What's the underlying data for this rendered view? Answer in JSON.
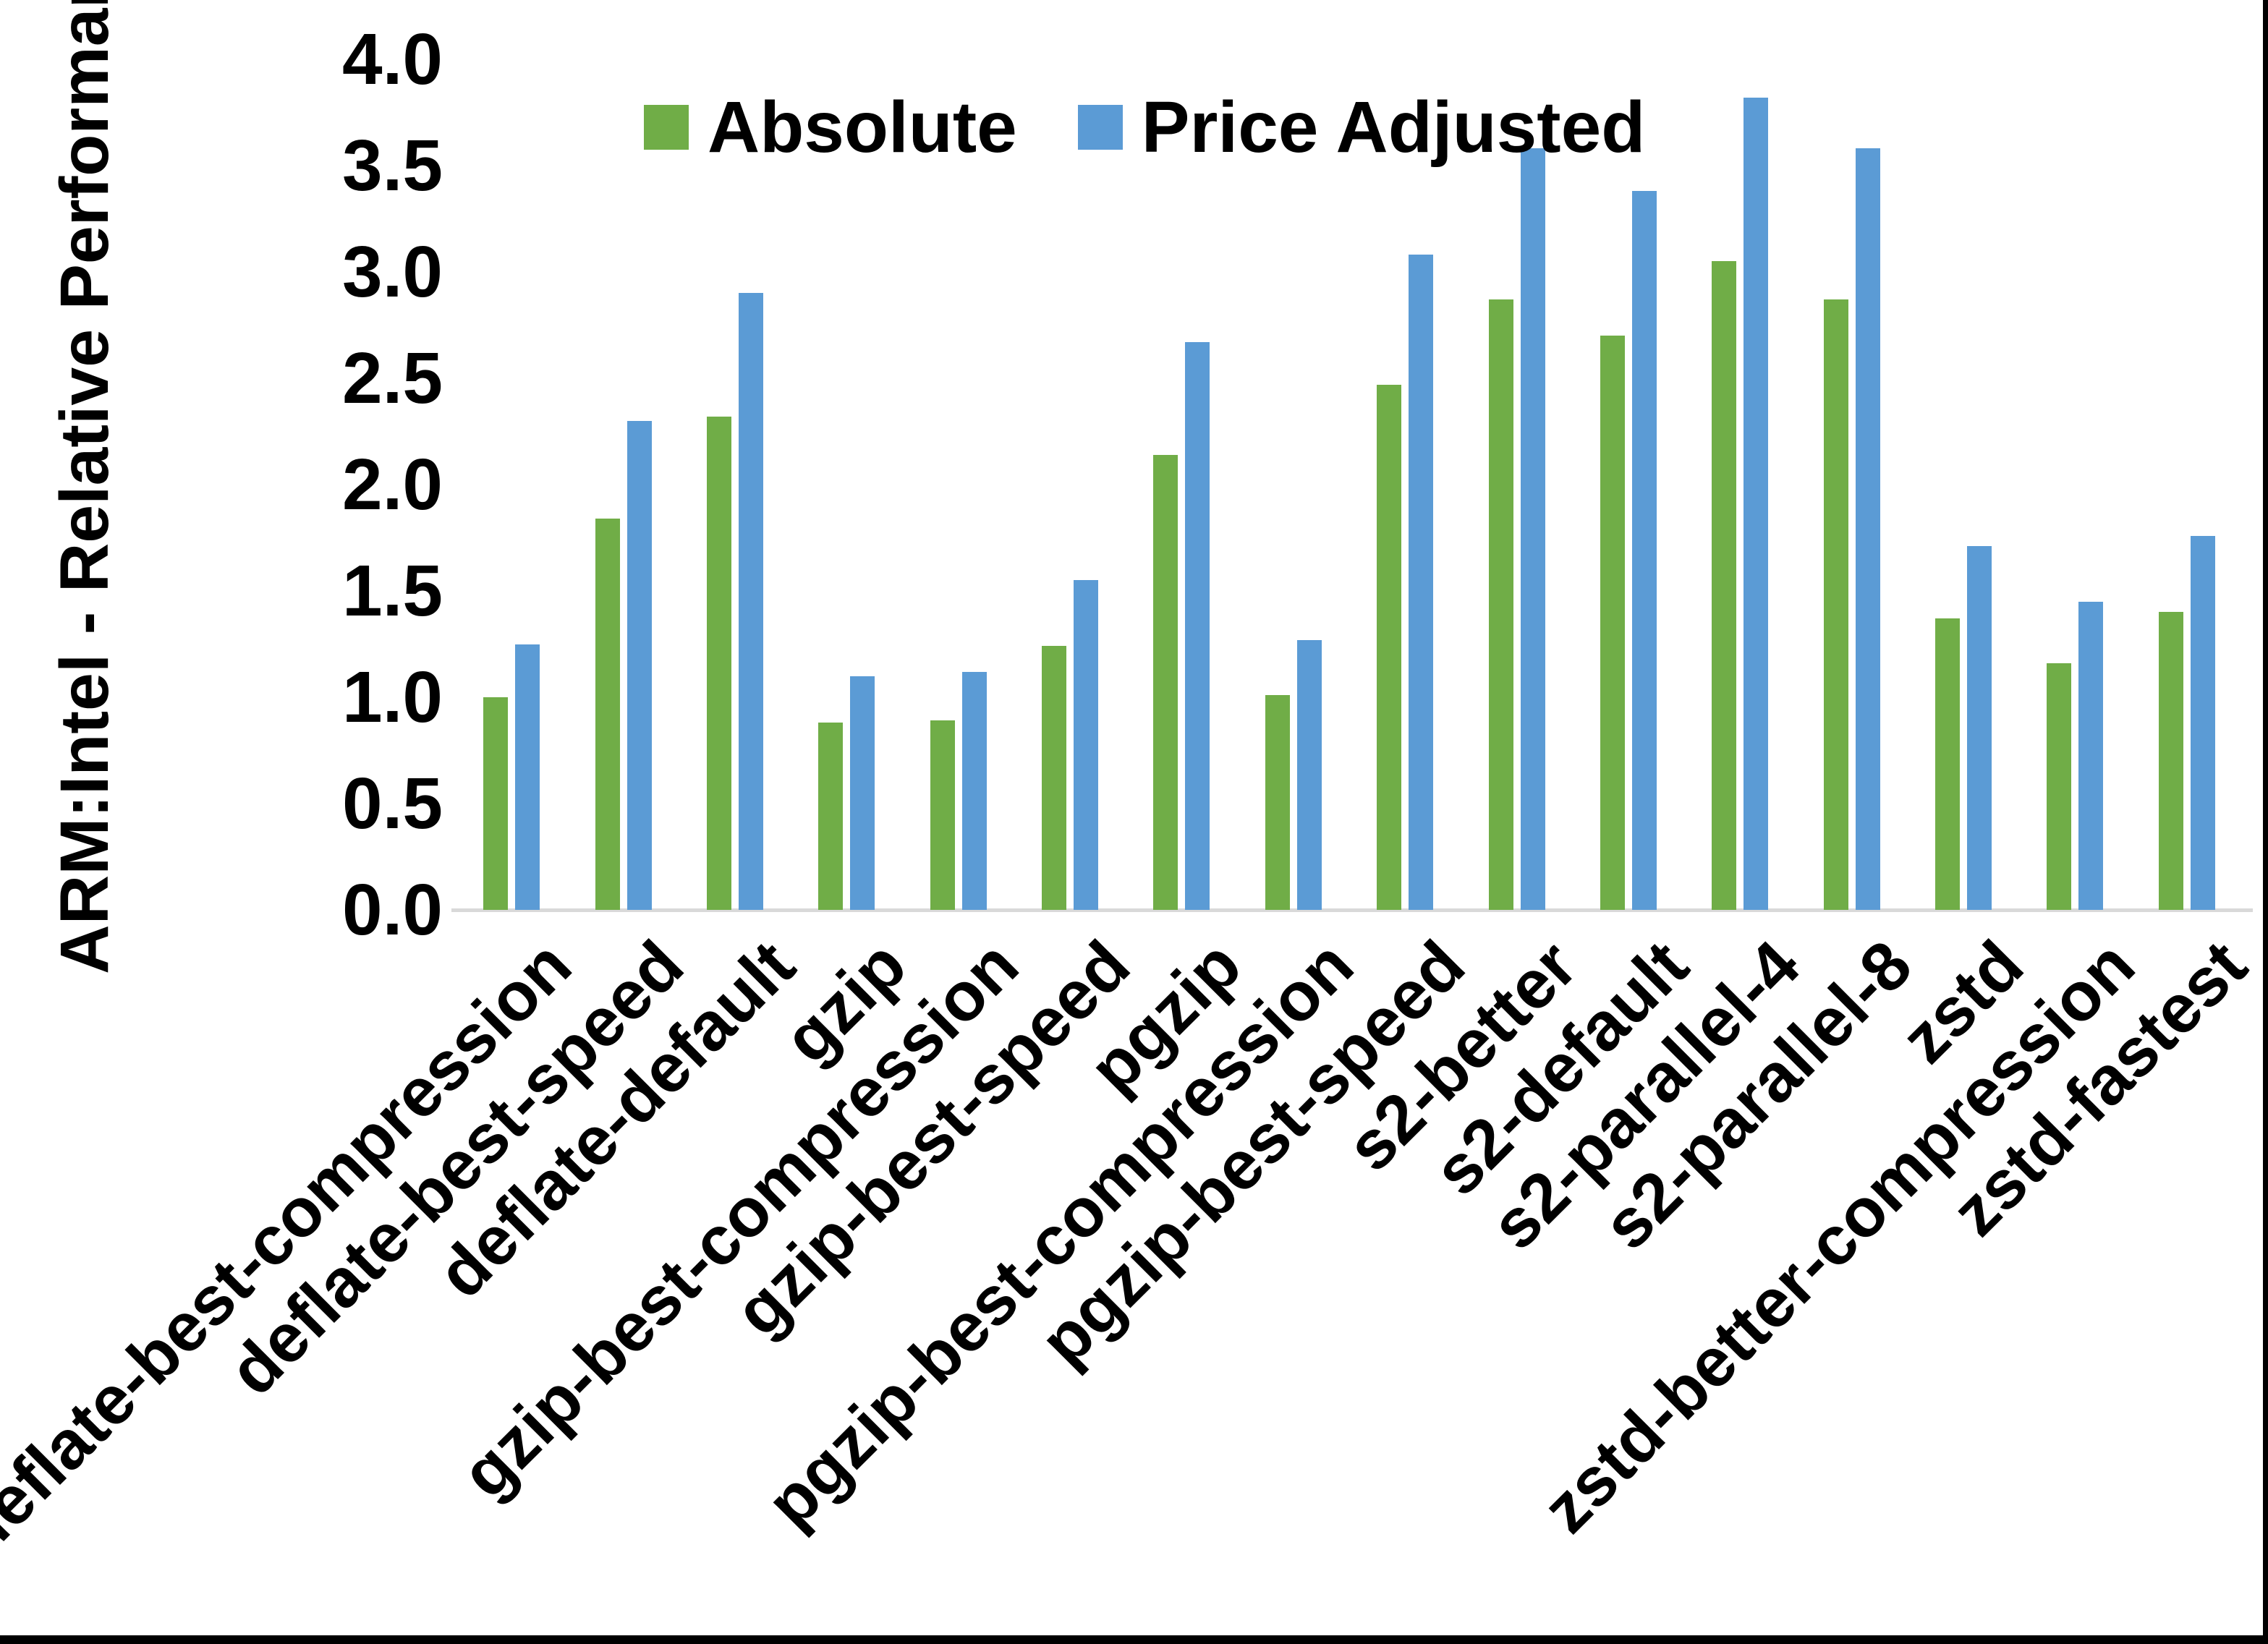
{
  "chart_data": {
    "type": "bar",
    "title": "",
    "xlabel": "",
    "ylabel": "ARM:Intel - Relative Performance",
    "ylim": [
      0,
      4.0
    ],
    "ytick_labels": [
      "0.0",
      "0.5",
      "1.0",
      "1.5",
      "2.0",
      "2.5",
      "3.0",
      "3.5",
      "4.0"
    ],
    "grid": false,
    "legend_position": "top-inside",
    "axis_line_color": "#d9d9d9",
    "categories": [
      "deflate-best-compression",
      "deflate-best-speed",
      "deflate-default",
      "gzip",
      "gzip-best-compression",
      "gzip-best-speed",
      "pgzip",
      "pgzip-best-compression",
      "pgzip-best-speed",
      "s2-better",
      "s2-default",
      "s2-parallel-4",
      "s2-parallel-8",
      "zstd",
      "zstd-better-compression",
      "zstd-fastest"
    ],
    "series": [
      {
        "name": "Absolute",
        "color": "#70AD47",
        "values": [
          1.0,
          1.84,
          2.32,
          0.88,
          0.89,
          1.24,
          2.14,
          1.01,
          2.47,
          2.87,
          2.7,
          3.05,
          2.87,
          1.37,
          1.16,
          1.4
        ]
      },
      {
        "name": "Price Adjusted",
        "color": "#5B9BD5",
        "values": [
          1.25,
          2.3,
          2.9,
          1.1,
          1.12,
          1.55,
          2.67,
          1.27,
          3.08,
          3.58,
          3.38,
          3.82,
          3.58,
          1.71,
          1.45,
          1.76
        ]
      }
    ]
  }
}
